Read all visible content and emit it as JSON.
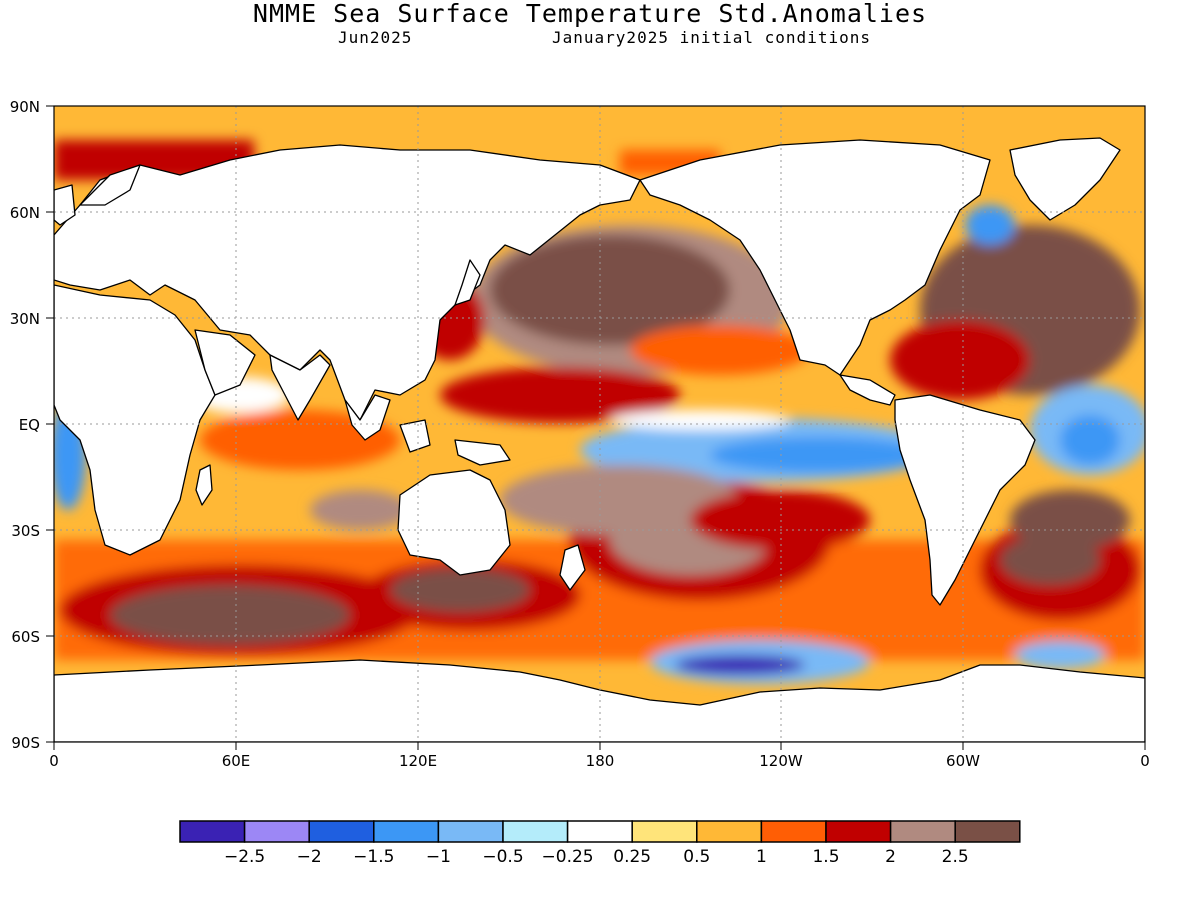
{
  "header": {
    "title": "NMME Sea Surface Temperature Std.Anomalies",
    "target_month": "Jun2025",
    "initial_conditions": "January2025 initial conditions"
  },
  "axes": {
    "lat_labels": [
      "90N",
      "60N",
      "30N",
      "EQ",
      "30S",
      "60S",
      "90S"
    ],
    "lon_labels": [
      "0",
      "60E",
      "120E",
      "180",
      "120W",
      "60W",
      "0"
    ]
  },
  "colorbar": {
    "labels": [
      "-2.5",
      "-2",
      "-1.5",
      "-1",
      "-0.5",
      "-0.25",
      "0.25",
      "0.5",
      "1",
      "1.5",
      "2",
      "2.5"
    ],
    "colors": [
      "#3a22b4",
      "#9c87f5",
      "#1f5fe0",
      "#3c97f5",
      "#79b9f6",
      "#b4ecfa",
      "#ffffff",
      "#ffe47a",
      "#ffb836",
      "#ff5e05",
      "#c00000",
      "#b08a80",
      "#7a5046"
    ]
  },
  "palette": {
    "land": "#ffffff",
    "coast": "#000000",
    "grid": "#9a9a9a"
  }
}
